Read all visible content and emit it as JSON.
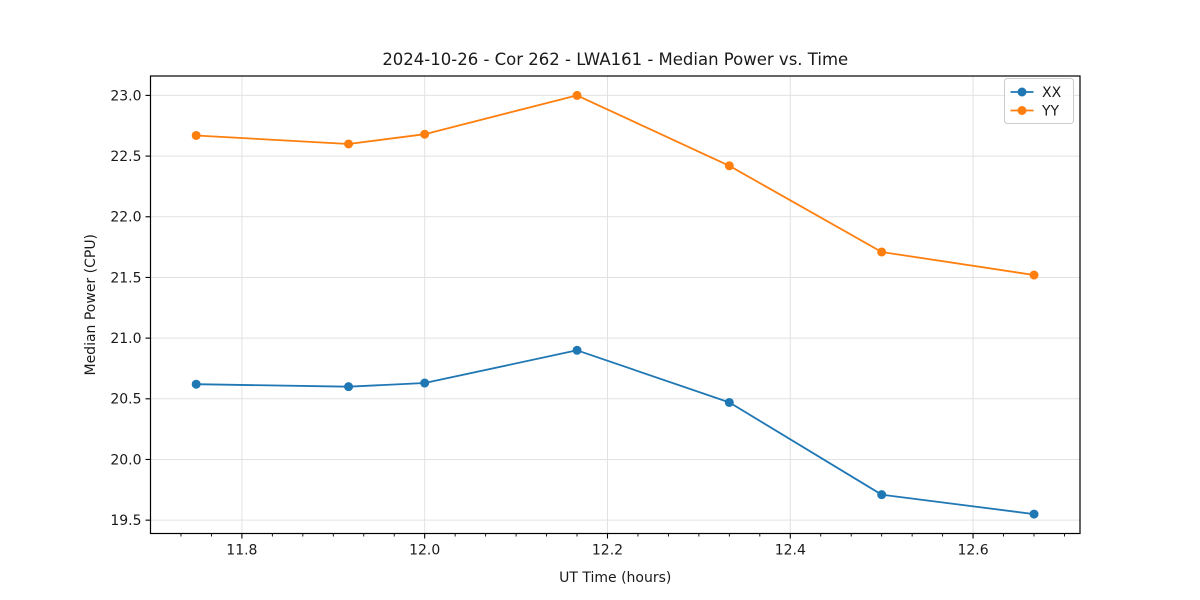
{
  "figure": {
    "title": "2024-10-26 - Cor 262 - LWA161 - Median Power vs. Time"
  },
  "chart_data": {
    "type": "line",
    "title": "2024-10-26 - Cor 262 - LWA161 - Median Power vs. Time",
    "xlabel": "UT Time (hours)",
    "ylabel": "Median Power (CPU)",
    "x": [
      11.75,
      11.9167,
      12.0,
      12.1667,
      12.3333,
      12.5,
      12.6667
    ],
    "series": [
      {
        "name": "XX",
        "color": "#1f77b4",
        "marker": "circle",
        "values": [
          20.62,
          20.6,
          20.63,
          20.9,
          20.47,
          19.71,
          19.55
        ]
      },
      {
        "name": "YY",
        "color": "#ff7f0e",
        "marker": "circle",
        "values": [
          22.67,
          22.6,
          22.68,
          23.0,
          22.42,
          21.71,
          21.52
        ]
      }
    ],
    "xticks": [
      11.8,
      12.0,
      12.2,
      12.4,
      12.6
    ],
    "xtick_labels": [
      "11.8",
      "12.0",
      "12.2",
      "12.4",
      "12.6"
    ],
    "yticks": [
      19.5,
      20.0,
      20.5,
      21.0,
      21.5,
      22.0,
      22.5,
      23.0
    ],
    "ytick_labels": [
      "19.5",
      "20.0",
      "20.5",
      "21.0",
      "21.5",
      "22.0",
      "22.5",
      "23.0"
    ],
    "xlim": [
      11.7,
      12.717
    ],
    "ylim": [
      19.39,
      23.16
    ],
    "x_minor_tick_step": 0.0333333,
    "grid": true,
    "grid_color": "#e2e2e2",
    "background": "#ffffff",
    "spine_color": "#000000",
    "legend": {
      "position": "upper right",
      "entries": [
        "XX",
        "YY"
      ]
    }
  }
}
